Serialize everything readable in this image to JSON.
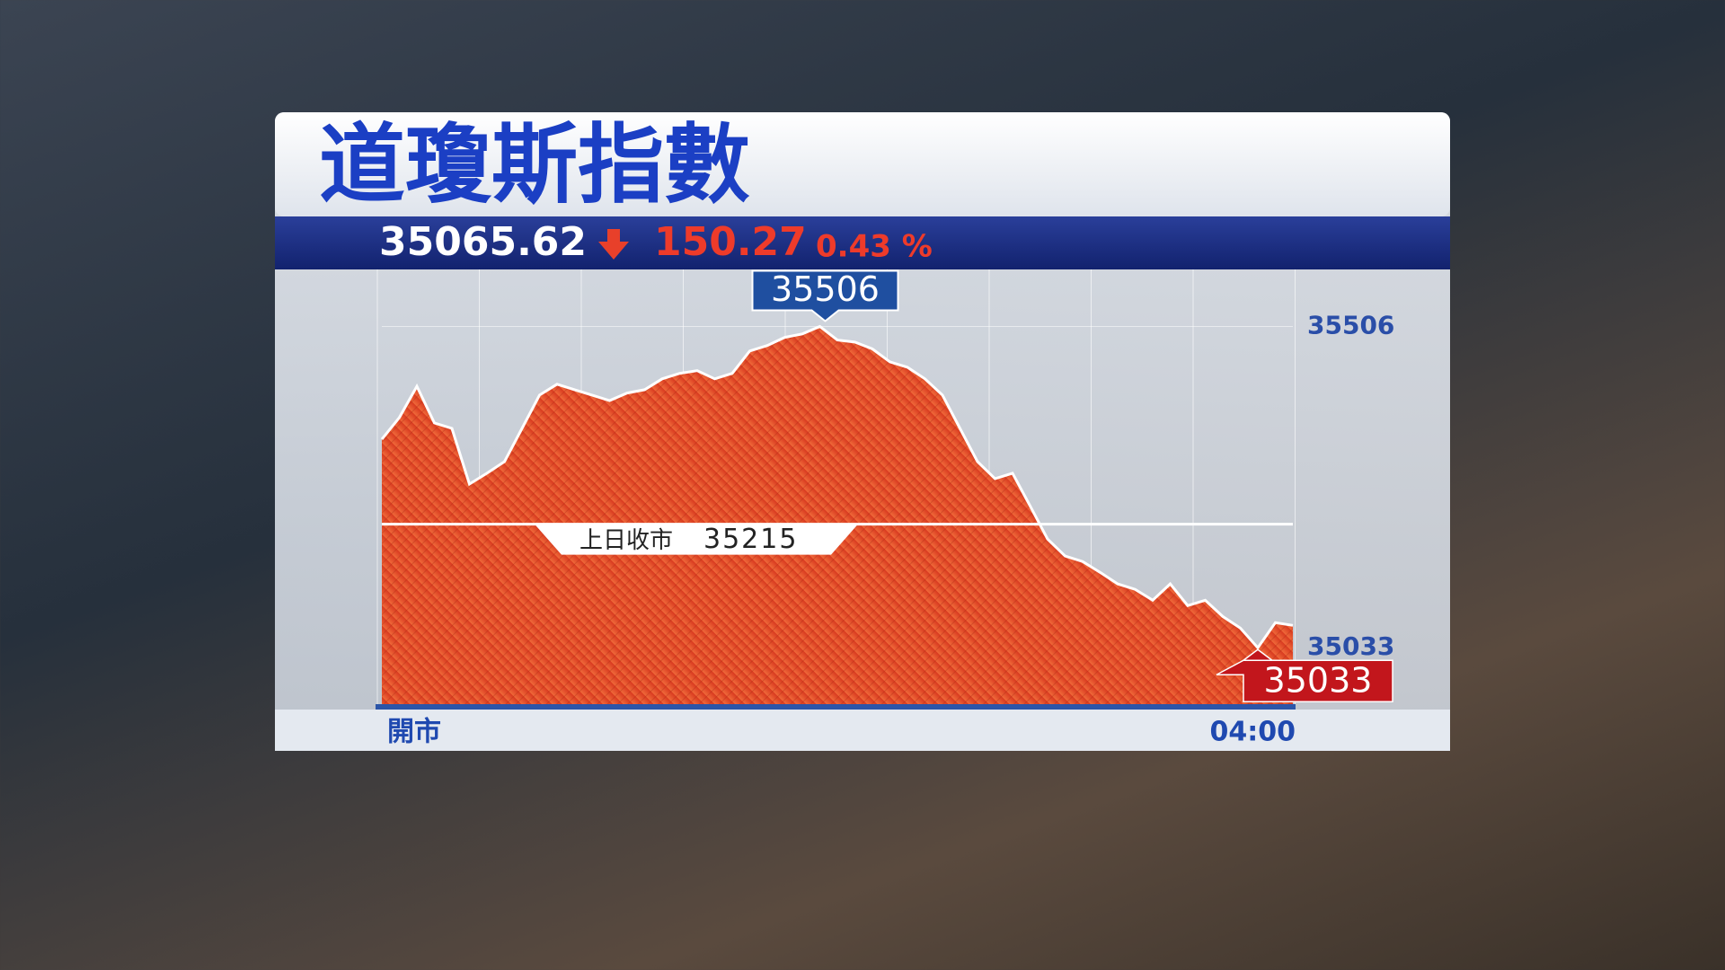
{
  "chart_data": {
    "type": "area",
    "title": "道瓊斯指數",
    "last": 35065.62,
    "change": 150.27,
    "change_pct": "0.43 %",
    "reference_line": {
      "label": "上日收市",
      "value": 35215
    },
    "high": 35506,
    "low": 35033,
    "x_labels": [
      "開市",
      "04:00"
    ],
    "values": [
      35340,
      35372,
      35418,
      35364,
      35356,
      35274,
      35290,
      35307,
      35356,
      35405,
      35421,
      35413,
      35405,
      35397,
      35408,
      35413,
      35429,
      35437,
      35441,
      35429,
      35437,
      35470,
      35478,
      35490,
      35495,
      35506,
      35486,
      35483,
      35473,
      35454,
      35446,
      35429,
      35405,
      35356,
      35307,
      35282,
      35290,
      35242,
      35193,
      35168,
      35160,
      35144,
      35127,
      35119,
      35103,
      35127,
      35095,
      35103,
      35079,
      35062,
      35033,
      35070,
      35066
    ],
    "color": "#e0482a",
    "ylim": [
      34950,
      35590
    ],
    "yticks": [
      35033,
      35506
    ],
    "grid": true
  }
}
